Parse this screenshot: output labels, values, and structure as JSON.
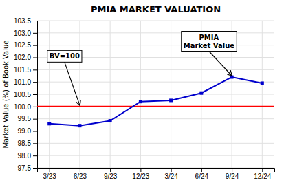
{
  "chart_data": {
    "type": "line",
    "title": "PMIA MARKET VALUATION",
    "y_label": "Market Value (%) of Book Value",
    "categories": [
      "3/23",
      "6/23",
      "9/23",
      "12/23",
      "3/24",
      "6/24",
      "9/24",
      "12/24"
    ],
    "series": [
      {
        "color": "#0000cd",
        "marker": "square",
        "values": [
          99.3,
          99.22,
          99.42,
          100.2,
          100.25,
          100.55,
          101.2,
          100.95
        ]
      }
    ],
    "hline": {
      "value": 100.0,
      "color": "#ff0000"
    },
    "annotations": [
      {
        "text": "BV=100",
        "category": "6/23",
        "value": 100.0
      },
      {
        "text": "PMIA\nMarket Value",
        "category": "9/24",
        "value": 101.2
      }
    ],
    "ylim": [
      97.5,
      103.5
    ],
    "yticks": [
      97.5,
      {
        "value": 98.0,
        "label": "98.0"
      },
      98.5,
      {
        "value": 99.0,
        "label": "99.0"
      },
      99.5,
      {
        "value": 100.0,
        "label": "100.0"
      },
      100.5,
      {
        "value": 101.0,
        "label": "101.0"
      },
      101.5,
      {
        "value": 102.0,
        "label": "102.0"
      },
      102.5,
      {
        "value": 103.0,
        "label": "103.0"
      },
      103.5
    ],
    "grid": true
  }
}
